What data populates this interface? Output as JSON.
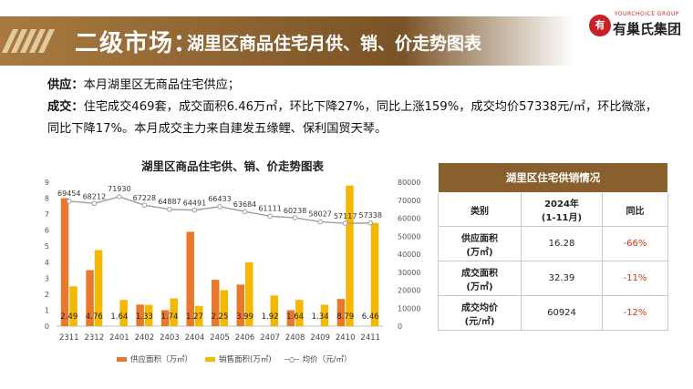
{
  "header": {
    "title_main": "二级市场：",
    "title_sub": "湖里区商品住宅月供、销、价走势图表",
    "logo_en": "YOURCHOICE GROUP",
    "logo_cn": "有巢氏集团",
    "logo_mark": "有"
  },
  "summary": {
    "supply_label": "供应：",
    "supply_text": "本月湖里区无商品住宅供应；",
    "deal_label": "成交：",
    "deal_text": "住宅成交469套，成交面积6.46万㎡，环比下降27%，同比上涨159%，成交均价57338元/㎡，环比微涨，同比下降17%。本月成交主力来自建发五缘鲤、保利国贸天琴。"
  },
  "chart_data": {
    "type": "bar",
    "title": "湖里区商品住宅供、销、价走势图表",
    "categories": [
      "2311",
      "2312",
      "2401",
      "2402",
      "2403",
      "2404",
      "2405",
      "2406",
      "2407",
      "2408",
      "2409",
      "2410",
      "2411"
    ],
    "series": [
      {
        "name": "供应面积（万㎡）",
        "type": "bar",
        "axis": "left",
        "color": "#e8782c",
        "values": [
          8.0,
          3.5,
          0,
          1.35,
          1.0,
          5.9,
          2.9,
          2.6,
          0,
          1.0,
          0,
          1.7,
          0
        ]
      },
      {
        "name": "销售面积(万㎡)",
        "type": "bar",
        "axis": "left",
        "color": "#f5b800",
        "values": [
          2.49,
          4.76,
          1.64,
          1.33,
          1.74,
          1.27,
          2.25,
          3.99,
          1.92,
          1.64,
          1.34,
          8.79,
          6.46
        ]
      },
      {
        "name": "均价（元/㎡）",
        "type": "line",
        "axis": "right",
        "color": "#9e9e9e",
        "values": [
          69454,
          68212,
          71930,
          67228,
          64887,
          64491,
          66433,
          63684,
          61111,
          60238,
          58027,
          57117,
          57338
        ]
      }
    ],
    "sales_labels": [
      "2.49",
      "4.76",
      "1.64",
      "1.33",
      "1.74",
      "1.27",
      "2.25",
      "3.99",
      "1.92",
      "1.64",
      "1.34",
      "8.79",
      "6.46"
    ],
    "price_labels": [
      "69454",
      "68212",
      "71930",
      "67228",
      "64887",
      "64491",
      "66433",
      "63684",
      "61111",
      "60238",
      "58027",
      "57117",
      "57338"
    ],
    "ylim_left": [
      0,
      9
    ],
    "ylim_right": [
      0,
      80000
    ],
    "yticks_left": [
      "0",
      "1",
      "2",
      "3",
      "4",
      "5",
      "6",
      "7",
      "8",
      "9"
    ],
    "yticks_right": [
      "0",
      "10000",
      "20000",
      "30000",
      "40000",
      "50000",
      "60000",
      "70000",
      "80000"
    ],
    "legend_position": "bottom",
    "grid": false
  },
  "table": {
    "caption": "湖里区住宅供销情况",
    "headers": [
      "类别",
      "2024年\n(1-11月)",
      "同比"
    ],
    "header_col1": "类别",
    "header_col2_line1": "2024年",
    "header_col2_line2": "(1-11月)",
    "header_col3": "同比",
    "rows": [
      {
        "label1": "供应面积",
        "label2": "(万㎡)",
        "value": "16.28",
        "yoy": "-66%"
      },
      {
        "label1": "成交面积",
        "label2": "(万㎡)",
        "value": "32.39",
        "yoy": "-11%"
      },
      {
        "label1": "成交均价",
        "label2": "(元/㎡)",
        "value": "60924",
        "yoy": "-12%"
      }
    ]
  }
}
